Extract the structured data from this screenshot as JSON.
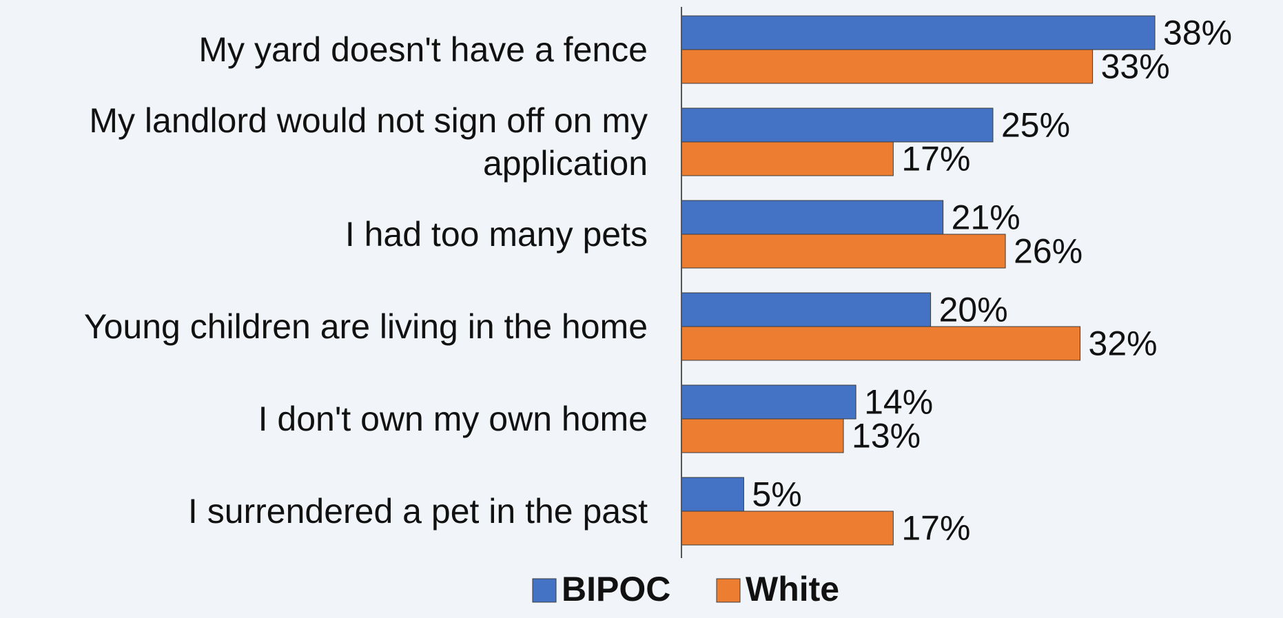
{
  "chart_data": {
    "type": "bar",
    "orientation": "horizontal",
    "categories": [
      [
        "My yard doesn't have a fence"
      ],
      [
        "My landlord would not sign off on my",
        "application"
      ],
      [
        "I had too many pets"
      ],
      [
        "Young children are living in the home"
      ],
      [
        "I don't own my own home"
      ],
      [
        "I surrendered a pet in the past"
      ]
    ],
    "series": [
      {
        "name": "BIPOC",
        "color": "#4472c4",
        "values": [
          38,
          25,
          21,
          20,
          14,
          5
        ],
        "labels": [
          "38%",
          "25%",
          "21%",
          "20%",
          "14%",
          "5%"
        ]
      },
      {
        "name": "White",
        "color": "#ed7d31",
        "values": [
          33,
          17,
          26,
          32,
          13,
          17
        ],
        "labels": [
          "33%",
          "17%",
          "26%",
          "32%",
          "13%",
          "17%"
        ]
      }
    ],
    "unit": "%",
    "xlim": [
      0,
      40
    ],
    "grid": false,
    "legend_position": "bottom",
    "title": "",
    "xlabel": "",
    "ylabel": ""
  }
}
